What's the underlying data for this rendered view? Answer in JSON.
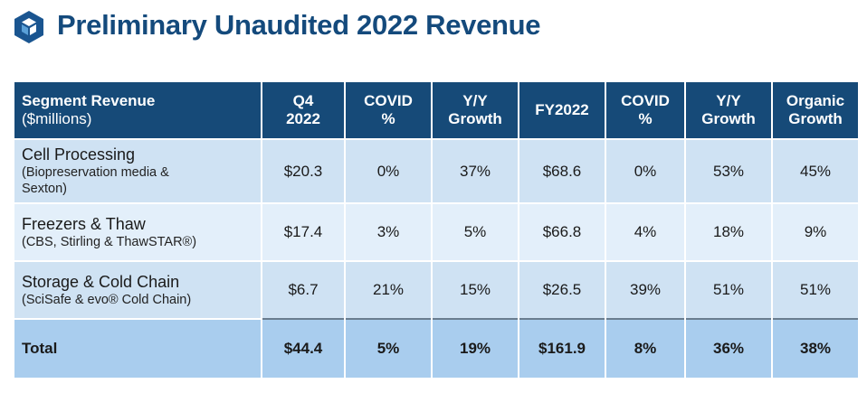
{
  "title": "Preliminary Unaudited 2022 Revenue",
  "colors": {
    "title": "#144a7c",
    "header": "#164a78",
    "row_dark": "#cfe2f3",
    "row_light": "#e3effa",
    "total": "#a9cdee"
  },
  "logo_icon": "hexagon-cube-logo",
  "table": {
    "headers": [
      {
        "line1": "Segment Revenue",
        "line2": "($millions)"
      },
      {
        "line1": "Q4",
        "line2": "2022"
      },
      {
        "line1": "COVID",
        "line2": "%"
      },
      {
        "line1": "Y/Y",
        "line2": "Growth"
      },
      {
        "line1": "FY2022",
        "line2": ""
      },
      {
        "line1": "COVID",
        "line2": "%"
      },
      {
        "line1": "Y/Y",
        "line2": "Growth"
      },
      {
        "line1": "Organic",
        "line2": "Growth"
      }
    ],
    "rows": [
      {
        "name": "Cell Processing",
        "desc1": "(Biopreservation media &",
        "desc2": "Sexton)",
        "values": [
          "$20.3",
          "0%",
          "37%",
          "$68.6",
          "0%",
          "53%",
          "45%"
        ]
      },
      {
        "name": "Freezers & Thaw",
        "desc1": "(CBS, Stirling & ThawSTAR®)",
        "desc2": "",
        "values": [
          "$17.4",
          "3%",
          "5%",
          "$66.8",
          "4%",
          "18%",
          "9%"
        ]
      },
      {
        "name": "Storage & Cold Chain",
        "desc1": "(SciSafe & evo® Cold Chain)",
        "desc2": "",
        "values": [
          "$6.7",
          "21%",
          "15%",
          "$26.5",
          "39%",
          "51%",
          "51%"
        ]
      }
    ],
    "total": {
      "name": "Total",
      "values": [
        "$44.4",
        "5%",
        "19%",
        "$161.9",
        "8%",
        "36%",
        "38%"
      ]
    }
  }
}
